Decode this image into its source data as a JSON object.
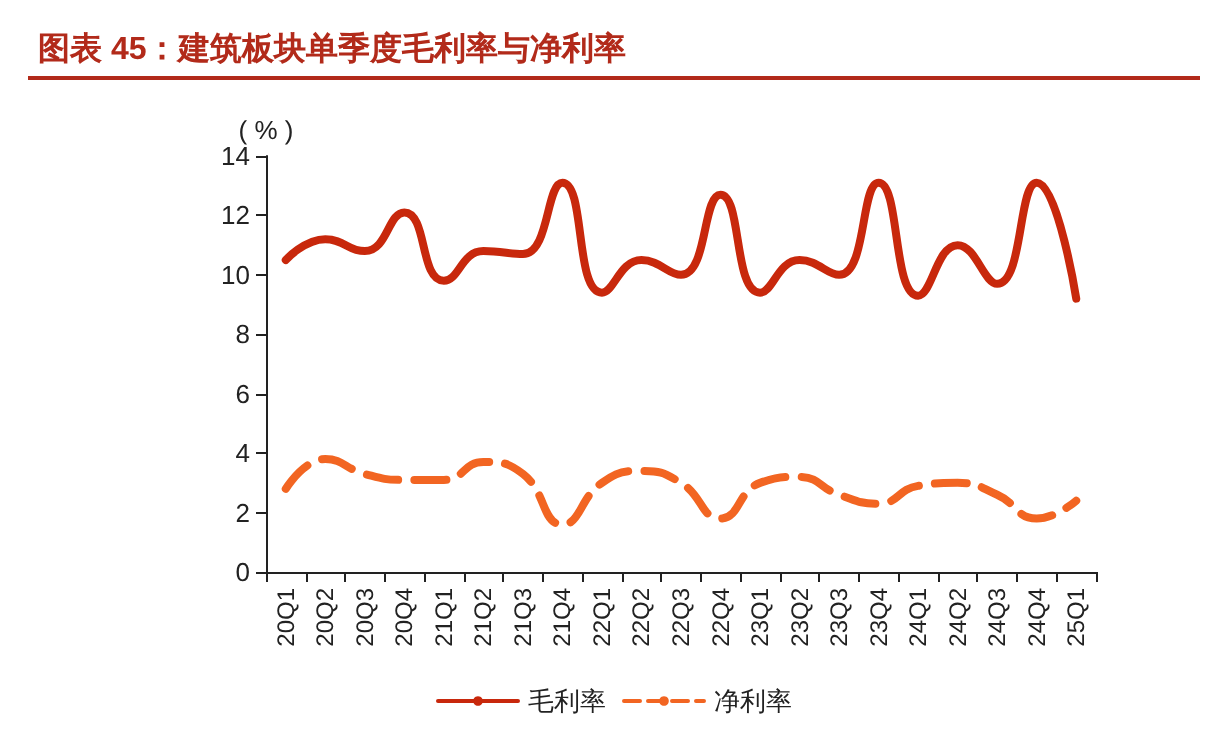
{
  "chart_data": {
    "type": "line",
    "title": "图表 45：建筑板块单季度毛利率与净利率",
    "ylabel": "( % )",
    "categories": [
      "20Q1",
      "20Q2",
      "20Q3",
      "20Q4",
      "21Q1",
      "21Q2",
      "21Q3",
      "21Q4",
      "22Q1",
      "22Q2",
      "22Q3",
      "22Q4",
      "23Q1",
      "23Q2",
      "23Q3",
      "23Q4",
      "24Q1",
      "24Q2",
      "24Q3",
      "24Q4",
      "25Q1"
    ],
    "series": [
      {
        "name": "毛利率",
        "color": "#c8280c",
        "line_style": "solid",
        "values": [
          10.5,
          11.2,
          10.8,
          12.1,
          9.8,
          10.8,
          10.7,
          13.1,
          9.4,
          10.5,
          10.0,
          12.7,
          9.4,
          10.5,
          10.0,
          13.1,
          9.3,
          11.0,
          9.7,
          13.1,
          9.2
        ]
      },
      {
        "name": "净利率",
        "color": "#f26522",
        "line_style": "dashed",
        "values": [
          2.8,
          3.8,
          3.3,
          3.1,
          3.1,
          3.7,
          3.3,
          1.6,
          3.0,
          3.4,
          3.0,
          1.8,
          3.0,
          3.2,
          2.6,
          2.3,
          2.9,
          3.0,
          2.6,
          1.8,
          2.4
        ]
      }
    ],
    "ylim": [
      0,
      14
    ],
    "yticks": [
      0,
      2,
      4,
      6,
      8,
      10,
      12,
      14
    ],
    "grid": false,
    "legend": "bottom",
    "marker": "none"
  }
}
